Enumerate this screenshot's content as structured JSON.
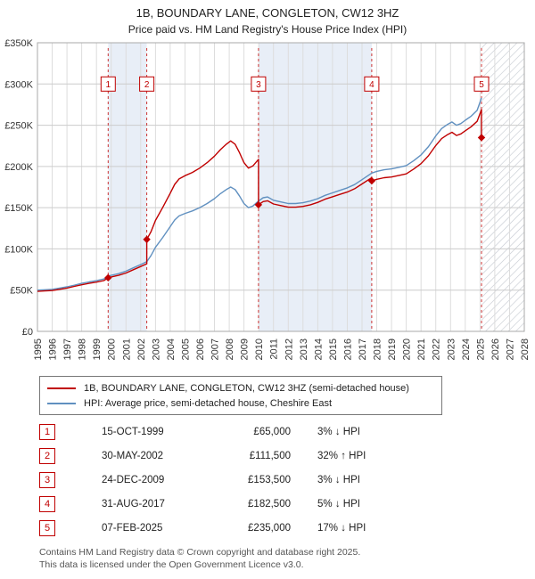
{
  "title_line1": "1B, BOUNDARY LANE, CONGLETON, CW12 3HZ",
  "title_line2": "Price paid vs. HM Land Registry's House Price Index (HPI)",
  "legend": {
    "series1": "1B, BOUNDARY LANE, CONGLETON, CW12 3HZ (semi-detached house)",
    "series2": "HPI: Average price, semi-detached house, Cheshire East"
  },
  "transactions": [
    {
      "num": "1",
      "date": "15-OCT-1999",
      "price": "£65,000",
      "hpi": "3% ↓ HPI"
    },
    {
      "num": "2",
      "date": "30-MAY-2002",
      "price": "£111,500",
      "hpi": "32% ↑ HPI"
    },
    {
      "num": "3",
      "date": "24-DEC-2009",
      "price": "£153,500",
      "hpi": "3% ↓ HPI"
    },
    {
      "num": "4",
      "date": "31-AUG-2017",
      "price": "£182,500",
      "hpi": "5% ↓ HPI"
    },
    {
      "num": "5",
      "date": "07-FEB-2025",
      "price": "£235,000",
      "hpi": "17% ↓ HPI"
    }
  ],
  "footer_line1": "Contains HM Land Registry data © Crown copyright and database right 2025.",
  "footer_line2": "This data is licensed under the Open Government Licence v3.0.",
  "chart_data": {
    "type": "line",
    "title": "1B, BOUNDARY LANE, CONGLETON, CW12 3HZ",
    "subtitle": "Price paid vs. HM Land Registry's House Price Index (HPI)",
    "units": "values in £1000s",
    "x_range": [
      1995,
      2028
    ],
    "y_range": [
      0,
      350
    ],
    "y_ticks": [
      0,
      50,
      100,
      150,
      200,
      250,
      300,
      350
    ],
    "y_tick_labels": [
      "£0",
      "£50K",
      "£100K",
      "£150K",
      "£200K",
      "£250K",
      "£300K",
      "£350K"
    ],
    "x_ticks": [
      1995,
      1996,
      1997,
      1998,
      1999,
      2000,
      2001,
      2002,
      2003,
      2004,
      2005,
      2006,
      2007,
      2008,
      2009,
      2010,
      2011,
      2012,
      2013,
      2014,
      2015,
      2016,
      2017,
      2018,
      2019,
      2020,
      2021,
      2022,
      2023,
      2024,
      2025,
      2026,
      2027,
      2028
    ],
    "grid": true,
    "legend_position": "bottom",
    "colors": {
      "price_line": "#c00000",
      "hpi_line": "#6090c0",
      "band": "#e8eef7",
      "sale_line": "#cc3333",
      "grid_h": "#cccccc",
      "grid_v": "#dddddd"
    },
    "marker_y": 300,
    "bands": [
      [
        1999.79,
        2002.41
      ],
      [
        2009.98,
        2017.66
      ]
    ],
    "future": {
      "start": 2025.1,
      "end": 2028
    },
    "sales": [
      {
        "n": "1",
        "x": 1999.79,
        "y": 65,
        "date": "15-OCT-1999",
        "price": 65000,
        "vs_hpi": "3% below HPI"
      },
      {
        "n": "2",
        "x": 2002.41,
        "y": 111.5,
        "date": "30-MAY-2002",
        "price": 111500,
        "vs_hpi": "32% above HPI"
      },
      {
        "n": "3",
        "x": 2009.98,
        "y": 153.5,
        "date": "24-DEC-2009",
        "price": 153500,
        "vs_hpi": "3% below HPI"
      },
      {
        "n": "4",
        "x": 2017.66,
        "y": 182.5,
        "date": "31-AUG-2017",
        "price": 182500,
        "vs_hpi": "5% below HPI"
      },
      {
        "n": "5",
        "x": 2025.1,
        "y": 235,
        "date": "07-FEB-2025",
        "price": 235000,
        "vs_hpi": "17% below HPI"
      }
    ],
    "series": [
      {
        "name": "1B, BOUNDARY LANE, CONGLETON, CW12 3HZ (semi-detached house)",
        "color": "#c00000",
        "points": [
          [
            1995,
            48.5
          ],
          [
            1995.5,
            49
          ],
          [
            1996,
            49.5
          ],
          [
            1996.5,
            51
          ],
          [
            1997,
            52.5
          ],
          [
            1997.5,
            54.5
          ],
          [
            1998,
            56.5
          ],
          [
            1998.5,
            58.2
          ],
          [
            1999,
            59.7
          ],
          [
            1999.5,
            61.6
          ],
          [
            1999.79,
            65
          ],
          [
            2000,
            66
          ],
          [
            2000.5,
            68
          ],
          [
            2001,
            70.8
          ],
          [
            2001.5,
            74.7
          ],
          [
            2002,
            78.6
          ],
          [
            2002.41,
            82
          ],
          [
            2002.41,
            111.5
          ],
          [
            2002.7,
            121
          ],
          [
            2003,
            134.6
          ],
          [
            2003.5,
            150.5
          ],
          [
            2004,
            167.6
          ],
          [
            2004.3,
            178.2
          ],
          [
            2004.6,
            184.8
          ],
          [
            2005,
            188.8
          ],
          [
            2005.5,
            192.7
          ],
          [
            2006,
            198
          ],
          [
            2006.5,
            204.6
          ],
          [
            2007,
            212.5
          ],
          [
            2007.4,
            220.4
          ],
          [
            2007.8,
            227
          ],
          [
            2008.1,
            231
          ],
          [
            2008.4,
            227
          ],
          [
            2008.7,
            216.5
          ],
          [
            2009,
            204.6
          ],
          [
            2009.3,
            198
          ],
          [
            2009.6,
            200.6
          ],
          [
            2009.98,
            208.6
          ],
          [
            2009.98,
            153.5
          ],
          [
            2010.3,
            157.4
          ],
          [
            2010.6,
            158.4
          ],
          [
            2011,
            154.5
          ],
          [
            2011.5,
            152.5
          ],
          [
            2012,
            150.6
          ],
          [
            2012.5,
            150.6
          ],
          [
            2013,
            151.6
          ],
          [
            2013.5,
            153.5
          ],
          [
            2014,
            156.4
          ],
          [
            2014.5,
            160.3
          ],
          [
            2015,
            163.2
          ],
          [
            2015.5,
            166.1
          ],
          [
            2016,
            169
          ],
          [
            2016.5,
            172.9
          ],
          [
            2017,
            178.8
          ],
          [
            2017.66,
            186.5
          ],
          [
            2017.66,
            182.5
          ],
          [
            2018,
            184.4
          ],
          [
            2018.5,
            186.3
          ],
          [
            2019,
            187.2
          ],
          [
            2019.5,
            189.1
          ],
          [
            2020,
            191
          ],
          [
            2020.5,
            196.8
          ],
          [
            2021,
            203.4
          ],
          [
            2021.5,
            212.9
          ],
          [
            2022,
            225.3
          ],
          [
            2022.4,
            233.8
          ],
          [
            2022.8,
            238.6
          ],
          [
            2023.1,
            241.4
          ],
          [
            2023.4,
            237.6
          ],
          [
            2023.7,
            239.5
          ],
          [
            2024,
            243.3
          ],
          [
            2024.4,
            248.1
          ],
          [
            2024.8,
            254.7
          ],
          [
            2025.1,
            269
          ],
          [
            2025.1,
            235
          ]
        ]
      },
      {
        "name": "HPI: Average price, semi-detached house, Cheshire East",
        "color": "#6090c0",
        "points": [
          [
            1995,
            50
          ],
          [
            1995.5,
            50.5
          ],
          [
            1996,
            51
          ],
          [
            1996.5,
            52.5
          ],
          [
            1997,
            54
          ],
          [
            1997.5,
            56
          ],
          [
            1998,
            58.2
          ],
          [
            1998.5,
            60
          ],
          [
            1999,
            61.5
          ],
          [
            1999.5,
            63.5
          ],
          [
            1999.79,
            67
          ],
          [
            2000,
            68
          ],
          [
            2000.5,
            70
          ],
          [
            2001,
            73
          ],
          [
            2001.5,
            77
          ],
          [
            2002,
            81
          ],
          [
            2002.41,
            84.5
          ],
          [
            2002.7,
            92
          ],
          [
            2003,
            102
          ],
          [
            2003.5,
            114
          ],
          [
            2004,
            127
          ],
          [
            2004.3,
            135
          ],
          [
            2004.6,
            140
          ],
          [
            2005,
            143
          ],
          [
            2005.5,
            146
          ],
          [
            2006,
            150
          ],
          [
            2006.5,
            155
          ],
          [
            2007,
            161
          ],
          [
            2007.4,
            167
          ],
          [
            2007.8,
            172
          ],
          [
            2008.1,
            175
          ],
          [
            2008.4,
            172
          ],
          [
            2008.7,
            164
          ],
          [
            2009,
            155
          ],
          [
            2009.3,
            150
          ],
          [
            2009.6,
            152
          ],
          [
            2009.98,
            158
          ],
          [
            2010.3,
            162
          ],
          [
            2010.6,
            163
          ],
          [
            2011,
            159
          ],
          [
            2011.5,
            157
          ],
          [
            2012,
            155
          ],
          [
            2012.5,
            155
          ],
          [
            2013,
            156
          ],
          [
            2013.5,
            158
          ],
          [
            2014,
            161
          ],
          [
            2014.5,
            165
          ],
          [
            2015,
            168
          ],
          [
            2015.5,
            171
          ],
          [
            2016,
            174
          ],
          [
            2016.5,
            178
          ],
          [
            2017,
            184
          ],
          [
            2017.66,
            192
          ],
          [
            2018,
            194
          ],
          [
            2018.5,
            196
          ],
          [
            2019,
            197
          ],
          [
            2019.5,
            199
          ],
          [
            2020,
            201
          ],
          [
            2020.5,
            207
          ],
          [
            2021,
            214
          ],
          [
            2021.5,
            224
          ],
          [
            2022,
            237
          ],
          [
            2022.4,
            246
          ],
          [
            2022.8,
            251
          ],
          [
            2023.1,
            254
          ],
          [
            2023.4,
            250
          ],
          [
            2023.7,
            252
          ],
          [
            2024,
            256
          ],
          [
            2024.4,
            261
          ],
          [
            2024.8,
            268
          ],
          [
            2025.1,
            283
          ]
        ]
      }
    ]
  }
}
